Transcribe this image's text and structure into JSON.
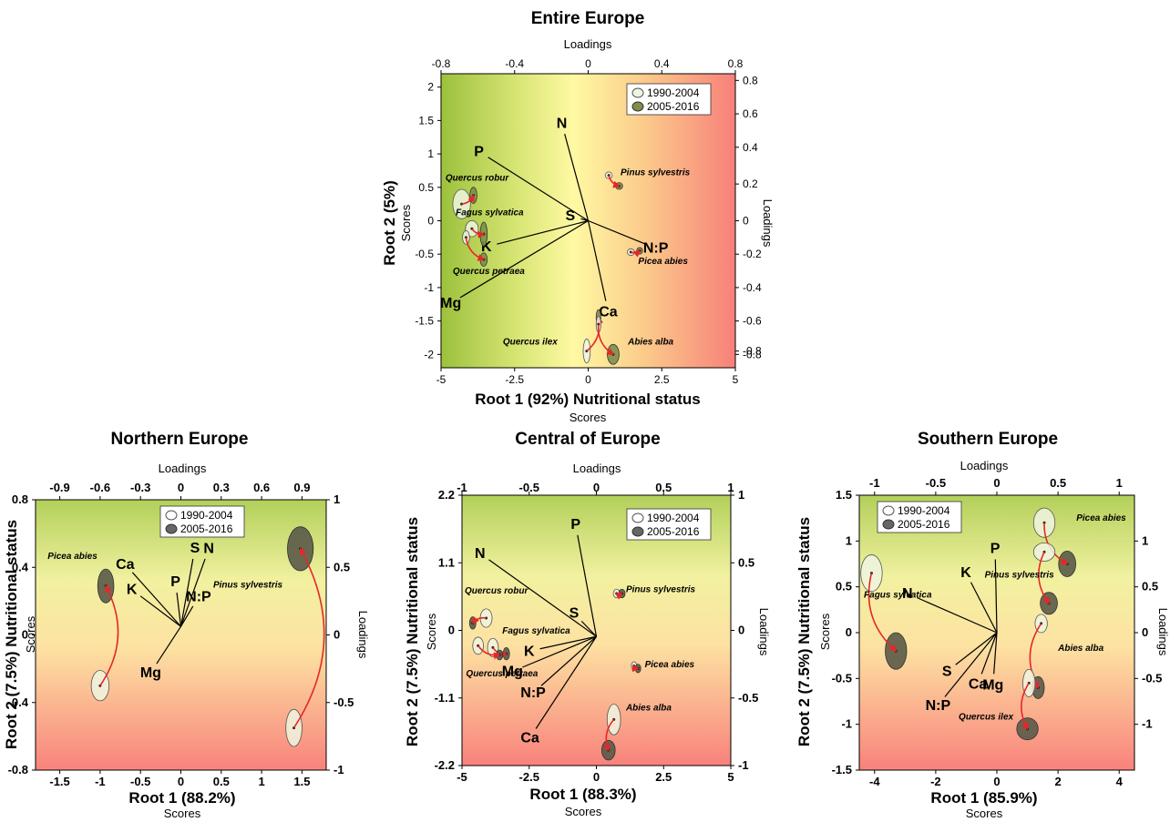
{
  "colors": {
    "old_fill": "#eef5e0",
    "new_fill_top": "#7d8e4a",
    "new_fill_other": "#5a5a48",
    "arrow": "#e8262a",
    "vector": "#000000"
  },
  "legend": {
    "old": "1990-2004",
    "new": "2005-2016"
  },
  "chart_data": [
    {
      "id": "entire",
      "type": "scatter",
      "title": "Entire Europe",
      "xlabel": "Root 1 (92%) Nutritional status",
      "xsub": "Scores",
      "ylabel": "Root 2 (5%)",
      "ysub": "Scores",
      "top_label": "Loadings",
      "right_label": "Loadings",
      "background": "horizontal",
      "xlim": [
        -5,
        5
      ],
      "ylim": [
        -2.2,
        2.2
      ],
      "xticks": [
        "-5",
        "-2.5",
        "0",
        "2.5",
        "5"
      ],
      "xtick_vals": [
        -5,
        -2.5,
        0,
        2.5,
        5
      ],
      "yticks": [
        "2",
        "1.5",
        "1",
        "0.5",
        "0",
        "-0.5",
        "-1",
        "-1.5",
        "-2"
      ],
      "ytick_vals": [
        2,
        1.5,
        1,
        0.5,
        0,
        -0.5,
        -1,
        -1.5,
        -2
      ],
      "top_ticks": [
        "-0.8",
        "-0.4",
        "0",
        "0.4",
        "0.8"
      ],
      "top_vals": [
        -5,
        -2.5,
        0,
        2.5,
        5
      ],
      "right_ticks": [
        "0.8",
        "0.6",
        "0.4",
        "0.2",
        "0",
        "-0.2",
        "-0.4",
        "-0.6",
        "-0.8",
        "-0.8"
      ],
      "right_vals": [
        2.1,
        1.6,
        1.1,
        0.55,
        0,
        -0.5,
        -1,
        -1.5,
        -1.95,
        -2
      ],
      "vectors": [
        {
          "label": "N",
          "x": -0.8,
          "y": 1.3
        },
        {
          "label": "P",
          "x": -3.4,
          "y": 0.95
        },
        {
          "label": "S",
          "x": -0.25,
          "y": 0.03
        },
        {
          "label": "K",
          "x": -3.1,
          "y": -0.35
        },
        {
          "label": "Mg",
          "x": -4.35,
          "y": -1.15
        },
        {
          "label": "Ca",
          "x": 0.6,
          "y": -1.2
        },
        {
          "label": "N:P",
          "x": 1.95,
          "y": -0.35
        }
      ],
      "species": [
        {
          "name": "Pinus sylvestris",
          "old": {
            "x": 0.7,
            "y": 0.68,
            "rx": 0.12,
            "ry": 0.05
          },
          "new": {
            "x": 1.05,
            "y": 0.52,
            "rx": 0.12,
            "ry": 0.05
          }
        },
        {
          "name": "Quercus robur",
          "old": {
            "x": -4.3,
            "y": 0.25,
            "rx": 0.3,
            "ry": 0.22
          },
          "new": {
            "x": -3.9,
            "y": 0.38,
            "rx": 0.12,
            "ry": 0.12
          }
        },
        {
          "name": "Fagus sylvatica",
          "old": {
            "x": -3.95,
            "y": -0.12,
            "rx": 0.22,
            "ry": 0.12
          },
          "new": {
            "x": -3.55,
            "y": -0.2,
            "rx": 0.12,
            "ry": 0.18
          }
        },
        {
          "name": "Quercus petraea",
          "old": {
            "x": -4.15,
            "y": -0.25,
            "rx": 0.12,
            "ry": 0.1
          },
          "new": {
            "x": -3.55,
            "y": -0.58,
            "rx": 0.12,
            "ry": 0.1
          }
        },
        {
          "name": "Picea abies",
          "old": {
            "x": 1.45,
            "y": -0.47,
            "rx": 0.12,
            "ry": 0.05
          },
          "new": {
            "x": 1.75,
            "y": -0.45,
            "rx": 0.1,
            "ry": 0.05
          }
        },
        {
          "name": "Quercus ilex",
          "old": {
            "x": -0.05,
            "y": -1.95,
            "rx": 0.12,
            "ry": 0.18
          },
          "new": {
            "x": 0.35,
            "y": -1.45,
            "rx": 0.08,
            "ry": 0.12
          }
        },
        {
          "name": "Abies alba",
          "old": {
            "x": 0.35,
            "y": -1.55,
            "rx": 0.08,
            "ry": 0.12
          },
          "new": {
            "x": 0.85,
            "y": -2.0,
            "rx": 0.2,
            "ry": 0.15
          }
        }
      ],
      "species_labels": [
        {
          "name": "Pinus sylvestris",
          "x": 1.1,
          "y": 0.68
        },
        {
          "name": "Quercus robur",
          "x": -4.85,
          "y": 0.6
        },
        {
          "name": "Fagus sylvatica",
          "x": -4.5,
          "y": 0.08
        },
        {
          "name": "Quercus petraea",
          "x": -4.6,
          "y": -0.8
        },
        {
          "name": "Picea abies",
          "x": 1.7,
          "y": -0.65
        },
        {
          "name": "Quercus ilex",
          "x": -2.9,
          "y": -1.85
        },
        {
          "name": "Abies alba",
          "x": 1.35,
          "y": -1.85
        }
      ]
    },
    {
      "id": "northern",
      "type": "scatter",
      "title": "Northern Europe",
      "xlabel": "Root 1 (88.2%)",
      "xsub": "Scores",
      "ylabel": "Root 2 (7.5%) Nutritional status",
      "ysub": "Scores",
      "top_label": "Loadings",
      "right_label": "Loadings",
      "background": "vertical",
      "xlim": [
        -1.8,
        1.8
      ],
      "ylim": [
        -0.8,
        0.8
      ],
      "xticks": [
        "-1.5",
        "-1",
        "-0.5",
        "0",
        "0.5",
        "1",
        "1.5"
      ],
      "xtick_vals": [
        -1.5,
        -1,
        -0.5,
        0,
        0.5,
        1,
        1.5
      ],
      "yticks": [
        "0.8",
        "0.4",
        "0",
        "-0.4",
        "-0.8"
      ],
      "ytick_vals": [
        0.8,
        0.4,
        0,
        -0.4,
        -0.8
      ],
      "top_ticks": [
        "-0.9",
        "-0.6",
        "-0.3",
        "0",
        "0.3",
        "0.6",
        "0.9"
      ],
      "top_vals": [
        -1.5,
        -1.0,
        -0.5,
        0,
        0.5,
        1.0,
        1.5
      ],
      "right_ticks": [
        "1",
        "0.5",
        "0",
        "-0.5",
        "-1"
      ],
      "right_vals": [
        0.8,
        0.4,
        0,
        -0.4,
        -0.8
      ],
      "origin": [
        0.0,
        0.05
      ],
      "vectors": [
        {
          "label": "Ca",
          "x": -0.6,
          "y": 0.37
        },
        {
          "label": "K",
          "x": -0.5,
          "y": 0.23
        },
        {
          "label": "P",
          "x": -0.05,
          "y": 0.25
        },
        {
          "label": "S",
          "x": 0.15,
          "y": 0.45
        },
        {
          "label": "N",
          "x": 0.3,
          "y": 0.45
        },
        {
          "label": "N:P",
          "x": 0.15,
          "y": 0.17
        },
        {
          "label": "Mg",
          "x": -0.3,
          "y": -0.17
        }
      ],
      "species": [
        {
          "name": "Picea abies",
          "old": {
            "x": -1.0,
            "y": -0.3,
            "rx": 0.11,
            "ry": 0.09
          },
          "new": {
            "x": -0.93,
            "y": 0.29,
            "rx": 0.1,
            "ry": 0.1
          }
        },
        {
          "name": "Pinus sylvestris",
          "old": {
            "x": 1.4,
            "y": -0.55,
            "rx": 0.1,
            "ry": 0.11
          },
          "new": {
            "x": 1.48,
            "y": 0.51,
            "rx": 0.16,
            "ry": 0.13
          }
        }
      ],
      "species_labels": [
        {
          "name": "Picea abies",
          "x": -1.65,
          "y": 0.45
        },
        {
          "name": "Pinus sylvestris",
          "x": 0.4,
          "y": 0.28
        }
      ]
    },
    {
      "id": "central",
      "type": "scatter",
      "title": "Central of Europe",
      "xlabel": "Root 1 (88.3%)",
      "xsub": "Scores",
      "ylabel": "Root 2 (7.5%) Nutritional status",
      "ysub": "Scores",
      "top_label": "Loadings",
      "right_label": "Loadings",
      "background": "vertical",
      "xlim": [
        -5,
        5
      ],
      "ylim": [
        -2.2,
        2.2
      ],
      "xticks": [
        "-5",
        "-2.5",
        "0",
        "2.5",
        "5"
      ],
      "xtick_vals": [
        -5,
        -2.5,
        0,
        2.5,
        5
      ],
      "yticks": [
        "2.2",
        "1.1",
        "0",
        "-1.1",
        "-2.2"
      ],
      "ytick_vals": [
        2.2,
        1.1,
        0,
        -1.1,
        -2.2
      ],
      "top_ticks": [
        "-1",
        "-0.5",
        "0",
        "0.5",
        "1"
      ],
      "top_vals": [
        -5,
        -2.5,
        0,
        2.5,
        5
      ],
      "right_ticks": [
        "1",
        "0.5",
        "0",
        "-0.5",
        "-1"
      ],
      "right_vals": [
        2.2,
        1.1,
        0,
        -1.1,
        -2.2
      ],
      "origin": [
        0.0,
        -0.1
      ],
      "vectors": [
        {
          "label": "P",
          "x": -0.7,
          "y": 1.55
        },
        {
          "label": "N",
          "x": -4.0,
          "y": 1.15
        },
        {
          "label": "S",
          "x": -0.55,
          "y": 0.15
        },
        {
          "label": "K",
          "x": -2.1,
          "y": -0.3
        },
        {
          "label": "Mg",
          "x": -2.75,
          "y": -0.6
        },
        {
          "label": "N:P",
          "x": -2.05,
          "y": -0.9
        },
        {
          "label": "Ca",
          "x": -2.25,
          "y": -1.6
        }
      ],
      "species": [
        {
          "name": "Pinus sylvestris",
          "old": {
            "x": 0.75,
            "y": 0.6,
            "rx": 0.12,
            "ry": 0.07
          },
          "new": {
            "x": 0.95,
            "y": 0.6,
            "rx": 0.12,
            "ry": 0.07
          }
        },
        {
          "name": "Quercus robur",
          "old": {
            "x": -4.1,
            "y": 0.2,
            "rx": 0.22,
            "ry": 0.15
          },
          "new": {
            "x": -4.6,
            "y": 0.12,
            "rx": 0.12,
            "ry": 0.1
          }
        },
        {
          "name": "Fagus sylvatica",
          "old": {
            "x": -3.85,
            "y": -0.28,
            "rx": 0.2,
            "ry": 0.15
          },
          "new": {
            "x": -3.35,
            "y": -0.38,
            "rx": 0.12,
            "ry": 0.1
          }
        },
        {
          "name": "Quercus petraea",
          "old": {
            "x": -4.4,
            "y": -0.25,
            "rx": 0.2,
            "ry": 0.14
          },
          "new": {
            "x": -3.6,
            "y": -0.4,
            "rx": 0.12,
            "ry": 0.08
          }
        },
        {
          "name": "Picea abies",
          "old": {
            "x": 1.4,
            "y": -0.58,
            "rx": 0.1,
            "ry": 0.07
          },
          "new": {
            "x": 1.55,
            "y": -0.62,
            "rx": 0.1,
            "ry": 0.07
          }
        },
        {
          "name": "Abies alba",
          "old": {
            "x": 0.65,
            "y": -1.45,
            "rx": 0.25,
            "ry": 0.25
          },
          "new": {
            "x": 0.45,
            "y": -1.95,
            "rx": 0.25,
            "ry": 0.16
          }
        }
      ],
      "species_labels": [
        {
          "name": "Pinus sylvestris",
          "x": 1.1,
          "y": 0.62
        },
        {
          "name": "Quercus robur",
          "x": -4.9,
          "y": 0.6
        },
        {
          "name": "Fagus sylvatica",
          "x": -3.5,
          "y": -0.05
        },
        {
          "name": "Quercus petraea",
          "x": -4.85,
          "y": -0.75
        },
        {
          "name": "Picea abies",
          "x": 1.8,
          "y": -0.6
        },
        {
          "name": "Abies alba",
          "x": 1.1,
          "y": -1.3
        }
      ]
    },
    {
      "id": "southern",
      "type": "scatter",
      "title": "Southern Europe",
      "xlabel": "Root 1 (85.9%)",
      "xsub": "Scores",
      "ylabel": "Root 2 (7.5%) Nutritional status",
      "ysub": "Scores",
      "top_label": "Loadings",
      "right_label": "Loadings",
      "background": "vertical",
      "xlim": [
        -4.5,
        4.5
      ],
      "ylim": [
        -1.5,
        1.5
      ],
      "xticks": [
        "-4",
        "-2",
        "0",
        "2",
        "4"
      ],
      "xtick_vals": [
        -4,
        -2,
        0,
        2,
        4
      ],
      "yticks": [
        "1.5",
        "1",
        "0.5",
        "0",
        "-0.5",
        "-1",
        "-1.5"
      ],
      "ytick_vals": [
        1.5,
        1,
        0.5,
        0,
        -0.5,
        -1,
        -1.5
      ],
      "top_ticks": [
        "-1",
        "-0.5",
        "0",
        "0.5",
        "1"
      ],
      "top_vals": [
        -4,
        -2,
        0,
        2,
        4
      ],
      "right_ticks": [
        "1",
        "0.5",
        "0",
        "-0.5",
        "-1"
      ],
      "right_vals": [
        1.0,
        0.5,
        0,
        -0.5,
        -1.0
      ],
      "origin": [
        0.0,
        0.0
      ],
      "vectors": [
        {
          "label": "P",
          "x": -0.05,
          "y": 0.8
        },
        {
          "label": "K",
          "x": -0.85,
          "y": 0.55
        },
        {
          "label": "N",
          "x": -2.6,
          "y": 0.38
        },
        {
          "label": "S",
          "x": -1.35,
          "y": -0.35
        },
        {
          "label": "Ca",
          "x": -0.5,
          "y": -0.45
        },
        {
          "label": "Mg",
          "x": -0.1,
          "y": -0.45
        },
        {
          "label": "N:P",
          "x": -1.7,
          "y": -0.7
        }
      ],
      "species": [
        {
          "name": "Picea abies",
          "old": {
            "x": 1.55,
            "y": 1.2,
            "rx": 0.35,
            "ry": 0.16
          },
          "new": {
            "x": 2.3,
            "y": 0.75,
            "rx": 0.28,
            "ry": 0.14
          }
        },
        {
          "name": "Pinus sylvestris",
          "old": {
            "x": 1.55,
            "y": 0.88,
            "rx": 0.35,
            "ry": 0.1
          },
          "new": {
            "x": 1.7,
            "y": 0.32,
            "rx": 0.28,
            "ry": 0.12
          }
        },
        {
          "name": "Fagus sylvatica",
          "old": {
            "x": -4.1,
            "y": 0.65,
            "rx": 0.35,
            "ry": 0.2
          },
          "new": {
            "x": -3.3,
            "y": -0.2,
            "rx": 0.35,
            "ry": 0.2
          }
        },
        {
          "name": "Abies alba",
          "old": {
            "x": 1.45,
            "y": 0.1,
            "rx": 0.2,
            "ry": 0.1
          },
          "new": {
            "x": 1.35,
            "y": -0.6,
            "rx": 0.2,
            "ry": 0.12
          }
        },
        {
          "name": "Quercus ilex",
          "old": {
            "x": 1.05,
            "y": -0.55,
            "rx": 0.2,
            "ry": 0.15
          },
          "new": {
            "x": 1.0,
            "y": -1.05,
            "rx": 0.35,
            "ry": 0.12
          }
        }
      ],
      "species_labels": [
        {
          "name": "Picea abies",
          "x": 2.6,
          "y": 1.22
        },
        {
          "name": "Pinus sylvestris",
          "x": -0.4,
          "y": 0.6
        },
        {
          "name": "Fagus sylvatica",
          "x": -4.35,
          "y": 0.38
        },
        {
          "name": "Abies alba",
          "x": 2.0,
          "y": -0.2
        },
        {
          "name": "Quercus ilex",
          "x": -1.25,
          "y": -0.95
        }
      ]
    }
  ]
}
